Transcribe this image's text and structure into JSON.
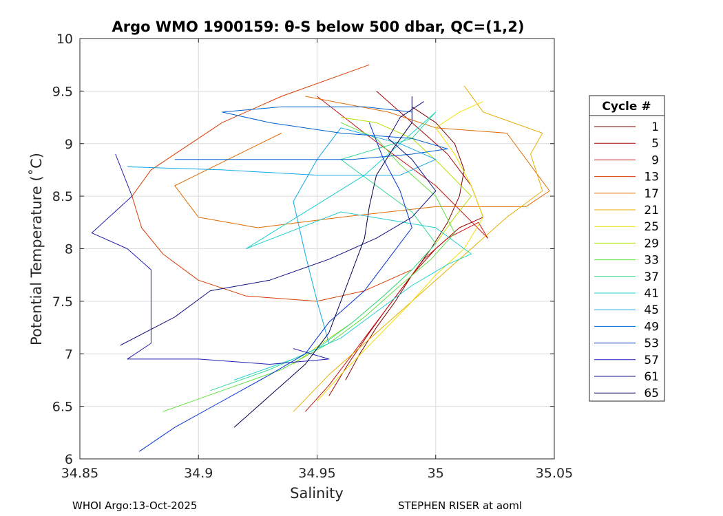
{
  "chart_data": {
    "type": "line",
    "title": "Argo WMO 1900159: θ-S below 500 dbar,  QC=(1,2)",
    "xlabel": "Salinity",
    "ylabel": "Potential Temperature (˚C)",
    "xlim": [
      34.85,
      35.05
    ],
    "ylim": [
      6,
      10
    ],
    "xticks": [
      "34.85",
      "34.9",
      "34.95",
      "35",
      "35.05"
    ],
    "yticks": [
      "6",
      "6.5",
      "7",
      "7.5",
      "8",
      "8.5",
      "9",
      "9.5",
      "10"
    ],
    "grid": true,
    "legend_title": "Cycle #",
    "legend_position": "right",
    "series": [
      {
        "name": "1",
        "color": "#800000",
        "points": [
          [
            34.962,
            6.75
          ],
          [
            34.968,
            7.0
          ],
          [
            34.975,
            7.25
          ],
          [
            34.983,
            7.5
          ],
          [
            34.99,
            7.75
          ],
          [
            34.998,
            8.0
          ],
          [
            35.005,
            8.25
          ],
          [
            35.01,
            8.5
          ],
          [
            35.012,
            8.75
          ],
          [
            35.008,
            9.0
          ],
          [
            35.0,
            9.2
          ],
          [
            34.99,
            9.35
          ]
        ]
      },
      {
        "name": "5",
        "color": "#a00000",
        "points": [
          [
            34.955,
            6.6
          ],
          [
            34.963,
            6.9
          ],
          [
            34.972,
            7.2
          ],
          [
            34.98,
            7.45
          ],
          [
            34.99,
            7.75
          ],
          [
            35.0,
            8.0
          ],
          [
            35.01,
            8.2
          ],
          [
            35.02,
            8.3
          ],
          [
            35.015,
            8.6
          ],
          [
            35.005,
            8.9
          ],
          [
            34.99,
            9.2
          ],
          [
            34.975,
            9.5
          ]
        ]
      },
      {
        "name": "9",
        "color": "#c41010",
        "points": [
          [
            34.945,
            6.45
          ],
          [
            34.955,
            6.7
          ],
          [
            34.965,
            7.0
          ],
          [
            34.975,
            7.3
          ],
          [
            34.985,
            7.6
          ],
          [
            34.995,
            7.9
          ],
          [
            35.005,
            8.1
          ],
          [
            35.018,
            8.25
          ],
          [
            35.022,
            8.1
          ],
          [
            35.0,
            8.6
          ],
          [
            34.97,
            9.1
          ],
          [
            34.95,
            9.45
          ]
        ]
      },
      {
        "name": "13",
        "color": "#d83a00",
        "points": [
          [
            34.972,
            9.75
          ],
          [
            34.935,
            9.45
          ],
          [
            34.91,
            9.2
          ],
          [
            34.88,
            8.75
          ],
          [
            34.872,
            8.5
          ],
          [
            34.876,
            8.2
          ],
          [
            34.885,
            7.95
          ],
          [
            34.9,
            7.7
          ],
          [
            34.92,
            7.55
          ],
          [
            34.95,
            7.5
          ],
          [
            34.97,
            7.6
          ],
          [
            34.99,
            7.8
          ]
        ]
      },
      {
        "name": "17",
        "color": "#e06a00",
        "points": [
          [
            34.945,
            9.45
          ],
          [
            34.98,
            9.3
          ],
          [
            35.0,
            9.15
          ],
          [
            35.03,
            9.1
          ],
          [
            35.048,
            8.55
          ],
          [
            35.038,
            8.4
          ],
          [
            35.0,
            8.4
          ],
          [
            34.96,
            8.3
          ],
          [
            34.925,
            8.2
          ],
          [
            34.9,
            8.3
          ],
          [
            34.89,
            8.6
          ],
          [
            34.935,
            9.1
          ]
        ]
      },
      {
        "name": "21",
        "color": "#e8b000",
        "points": [
          [
            34.94,
            6.45
          ],
          [
            34.955,
            6.8
          ],
          [
            34.97,
            7.1
          ],
          [
            34.985,
            7.4
          ],
          [
            35.0,
            7.7
          ],
          [
            35.015,
            8.0
          ],
          [
            35.03,
            8.3
          ],
          [
            35.045,
            8.55
          ],
          [
            35.04,
            8.9
          ],
          [
            35.045,
            9.1
          ],
          [
            35.02,
            9.3
          ],
          [
            35.012,
            9.55
          ]
        ]
      },
      {
        "name": "25",
        "color": "#f0e000",
        "points": [
          [
            34.95,
            6.55
          ],
          [
            34.962,
            6.85
          ],
          [
            34.975,
            7.15
          ],
          [
            34.988,
            7.45
          ],
          [
            35.0,
            7.75
          ],
          [
            35.012,
            8.0
          ],
          [
            35.02,
            8.3
          ],
          [
            35.015,
            8.6
          ],
          [
            35.008,
            8.9
          ],
          [
            35.0,
            9.15
          ],
          [
            35.01,
            9.3
          ],
          [
            35.02,
            9.4
          ]
        ]
      },
      {
        "name": "29",
        "color": "#b0e000",
        "points": [
          [
            34.94,
            6.9
          ],
          [
            34.952,
            7.1
          ],
          [
            34.965,
            7.3
          ],
          [
            34.978,
            7.55
          ],
          [
            34.99,
            7.8
          ],
          [
            35.0,
            8.05
          ],
          [
            35.008,
            8.3
          ],
          [
            35.015,
            8.5
          ],
          [
            35.002,
            8.8
          ],
          [
            34.99,
            9.05
          ],
          [
            34.975,
            9.2
          ],
          [
            34.96,
            9.25
          ]
        ]
      },
      {
        "name": "33",
        "color": "#60e040",
        "points": [
          [
            34.885,
            6.45
          ],
          [
            34.91,
            6.65
          ],
          [
            34.935,
            6.85
          ],
          [
            34.955,
            7.1
          ],
          [
            34.97,
            7.35
          ],
          [
            34.985,
            7.65
          ],
          [
            34.998,
            7.9
          ],
          [
            35.008,
            8.15
          ],
          [
            35.0,
            8.5
          ],
          [
            34.985,
            8.8
          ],
          [
            34.975,
            9.05
          ],
          [
            34.96,
            9.2
          ]
        ]
      },
      {
        "name": "37",
        "color": "#30d890",
        "points": [
          [
            34.905,
            6.65
          ],
          [
            34.93,
            6.85
          ],
          [
            34.95,
            7.05
          ],
          [
            34.965,
            7.3
          ],
          [
            34.978,
            7.55
          ],
          [
            34.99,
            7.8
          ],
          [
            35.0,
            8.05
          ],
          [
            34.99,
            8.35
          ],
          [
            34.975,
            8.6
          ],
          [
            34.96,
            8.85
          ],
          [
            34.99,
            9.05
          ],
          [
            35.0,
            9.3
          ]
        ]
      },
      {
        "name": "41",
        "color": "#20d0d0",
        "points": [
          [
            34.915,
            6.75
          ],
          [
            34.94,
            6.95
          ],
          [
            34.96,
            7.15
          ],
          [
            34.975,
            7.4
          ],
          [
            34.99,
            7.65
          ],
          [
            35.005,
            7.85
          ],
          [
            35.015,
            7.95
          ],
          [
            35.0,
            8.2
          ],
          [
            34.96,
            8.35
          ],
          [
            34.92,
            8.0
          ],
          [
            34.97,
            8.7
          ],
          [
            35.0,
            9.3
          ]
        ]
      },
      {
        "name": "45",
        "color": "#10a8e8",
        "points": [
          [
            34.87,
            8.78
          ],
          [
            34.91,
            8.75
          ],
          [
            34.95,
            8.7
          ],
          [
            34.985,
            8.7
          ],
          [
            35.0,
            8.85
          ],
          [
            34.985,
            9.0
          ],
          [
            34.96,
            9.15
          ],
          [
            34.95,
            8.85
          ],
          [
            34.94,
            8.45
          ],
          [
            34.945,
            7.95
          ],
          [
            34.95,
            7.5
          ],
          [
            34.955,
            7.1
          ]
        ]
      },
      {
        "name": "49",
        "color": "#0060d0",
        "points": [
          [
            34.89,
            8.85
          ],
          [
            34.93,
            8.85
          ],
          [
            34.965,
            8.85
          ],
          [
            34.99,
            8.9
          ],
          [
            35.005,
            8.95
          ],
          [
            34.99,
            9.05
          ],
          [
            34.96,
            9.1
          ],
          [
            34.93,
            9.2
          ],
          [
            34.91,
            9.3
          ],
          [
            34.935,
            9.35
          ],
          [
            34.97,
            9.35
          ],
          [
            34.99,
            9.3
          ]
        ]
      },
      {
        "name": "53",
        "color": "#0030d0",
        "points": [
          [
            34.875,
            6.07
          ],
          [
            34.89,
            6.3
          ],
          [
            34.91,
            6.55
          ],
          [
            34.93,
            6.8
          ],
          [
            34.945,
            7.0
          ],
          [
            34.955,
            7.3
          ],
          [
            34.97,
            7.6
          ],
          [
            34.98,
            7.9
          ],
          [
            34.99,
            8.2
          ],
          [
            34.985,
            8.55
          ],
          [
            34.978,
            8.85
          ],
          [
            34.972,
            9.2
          ]
        ]
      },
      {
        "name": "57",
        "color": "#2020b0",
        "points": [
          [
            34.865,
            8.9
          ],
          [
            34.872,
            8.5
          ],
          [
            34.855,
            8.15
          ],
          [
            34.87,
            8.0
          ],
          [
            34.88,
            7.8
          ],
          [
            34.88,
            7.45
          ],
          [
            34.88,
            7.1
          ],
          [
            34.87,
            6.95
          ],
          [
            34.9,
            6.95
          ],
          [
            34.93,
            6.9
          ],
          [
            34.955,
            6.95
          ],
          [
            34.94,
            7.05
          ]
        ]
      },
      {
        "name": "61",
        "color": "#101080",
        "points": [
          [
            34.867,
            7.08
          ],
          [
            34.89,
            7.35
          ],
          [
            34.905,
            7.6
          ],
          [
            34.93,
            7.7
          ],
          [
            34.955,
            7.9
          ],
          [
            34.975,
            8.1
          ],
          [
            34.99,
            8.3
          ],
          [
            35.0,
            8.55
          ],
          [
            34.99,
            8.85
          ],
          [
            34.98,
            9.05
          ],
          [
            34.985,
            9.25
          ],
          [
            34.995,
            9.4
          ]
        ]
      },
      {
        "name": "65",
        "color": "#000050",
        "points": [
          [
            34.915,
            6.3
          ],
          [
            34.93,
            6.6
          ],
          [
            34.945,
            6.9
          ],
          [
            34.955,
            7.2
          ],
          [
            34.96,
            7.5
          ],
          [
            34.965,
            7.8
          ],
          [
            34.97,
            8.1
          ],
          [
            34.972,
            8.4
          ],
          [
            34.975,
            8.7
          ],
          [
            34.982,
            8.95
          ],
          [
            34.99,
            9.2
          ],
          [
            34.99,
            9.45
          ]
        ]
      }
    ]
  },
  "footer": {
    "left": "WHOI Argo:13-Oct-2025",
    "right": "STEPHEN RISER at aoml"
  }
}
